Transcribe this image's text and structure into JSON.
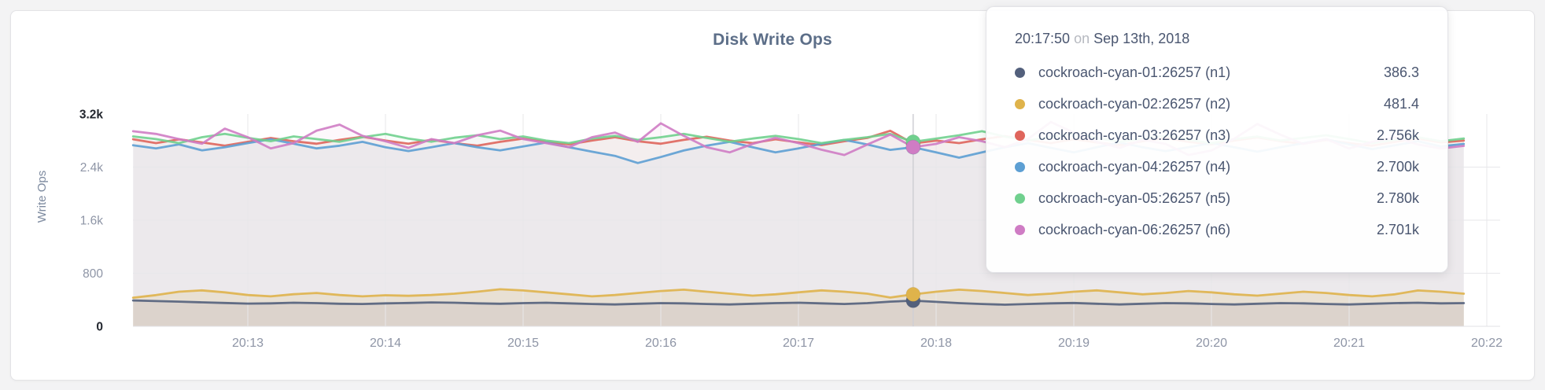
{
  "chart": {
    "title": "Disk Write Ops",
    "y_axis_label": "Write Ops"
  },
  "tooltip": {
    "time": "20:17:50",
    "conjunction": "on",
    "date": "Sep 13th, 2018",
    "rows": [
      {
        "label": "cockroach-cyan-01:26257 (n1)",
        "value": "386.3",
        "color": "#53607c"
      },
      {
        "label": "cockroach-cyan-02:26257 (n2)",
        "value": "481.4",
        "color": "#dfb34b"
      },
      {
        "label": "cockroach-cyan-03:26257 (n3)",
        "value": "2.756k",
        "color": "#df655c"
      },
      {
        "label": "cockroach-cyan-04:26257 (n4)",
        "value": "2.700k",
        "color": "#5d9fd3"
      },
      {
        "label": "cockroach-cyan-05:26257 (n5)",
        "value": "2.780k",
        "color": "#70d08e"
      },
      {
        "label": "cockroach-cyan-06:26257 (n6)",
        "value": "2.701k",
        "color": "#cf7cc4"
      }
    ]
  },
  "chart_data": {
    "type": "line",
    "title": "Disk Write Ops",
    "ylabel": "Write Ops",
    "xlabel": "",
    "ylim": [
      0,
      3200
    ],
    "y_tick_values": [
      0,
      800,
      1600,
      2400,
      3200
    ],
    "y_tick_labels": [
      "0",
      "800",
      "1.6k",
      "2.4k",
      "3.2k"
    ],
    "x_ticks": [
      "20:13",
      "20:14",
      "20:15",
      "20:16",
      "20:17",
      "20:18",
      "20:19",
      "20:20",
      "20:21",
      "20:22"
    ],
    "x_start": "20:12:10",
    "x_end": "20:21:50",
    "x_interval_seconds": 10,
    "grid": true,
    "legend_position": "tooltip-only",
    "hover": {
      "time": "20:17:50",
      "date": "Sep 13th, 2018",
      "index": 34
    },
    "series": [
      {
        "name": "cockroach-cyan-01:26257 (n1)",
        "color": "#53607c",
        "fill_opacity": 0.1,
        "hover_value": 386.3,
        "values": [
          390,
          380,
          372,
          362,
          352,
          342,
          346,
          356,
          350,
          340,
          336,
          346,
          352,
          360,
          355,
          346,
          340,
          350,
          356,
          346,
          336,
          330,
          340,
          350,
          346,
          336,
          330,
          340,
          350,
          356,
          346,
          336,
          350,
          372,
          386.3,
          368,
          350,
          336,
          326,
          336,
          346,
          352,
          340,
          330,
          340,
          350,
          346,
          336,
          330,
          340,
          350,
          346,
          336,
          330,
          340,
          350,
          356,
          346,
          350
        ]
      },
      {
        "name": "cockroach-cyan-02:26257 (n2)",
        "color": "#dfb34b",
        "fill_opacity": 0.16,
        "hover_value": 481.4,
        "values": [
          432,
          470,
          521,
          542,
          512,
          472,
          452,
          483,
          502,
          472,
          452,
          468,
          460,
          472,
          492,
          522,
          558,
          540,
          512,
          482,
          452,
          472,
          502,
          532,
          552,
          522,
          492,
          462,
          482,
          512,
          542,
          522,
          492,
          434,
          481.4,
          522,
          552,
          532,
          502,
          472,
          492,
          522,
          542,
          512,
          482,
          502,
          532,
          512,
          482,
          462,
          492,
          522,
          502,
          472,
          452,
          482,
          541,
          521,
          492
        ]
      },
      {
        "name": "cockroach-cyan-03:26257 (n3)",
        "color": "#df655c",
        "fill_opacity": 0.05,
        "hover_value": 2756,
        "values": [
          2820,
          2762,
          2818,
          2772,
          2722,
          2780,
          2838,
          2790,
          2752,
          2810,
          2858,
          2800,
          2752,
          2812,
          2762,
          2722,
          2780,
          2830,
          2782,
          2742,
          2800,
          2850,
          2790,
          2752,
          2810,
          2858,
          2800,
          2762,
          2820,
          2772,
          2732,
          2790,
          2840,
          2948,
          2756,
          2800,
          2762,
          2820,
          2868,
          2810,
          2762,
          2820,
          2772,
          2732,
          2790,
          2838,
          2780,
          2742,
          2800,
          2848,
          2790,
          2752,
          2810,
          2762,
          2722,
          2780,
          2830,
          2772,
          2800
        ]
      },
      {
        "name": "cockroach-cyan-04:26257 (n4)",
        "color": "#5d9fd3",
        "fill_opacity": 0.05,
        "hover_value": 2700,
        "values": [
          2730,
          2682,
          2742,
          2652,
          2700,
          2762,
          2820,
          2752,
          2682,
          2722,
          2780,
          2700,
          2642,
          2700,
          2762,
          2700,
          2652,
          2712,
          2770,
          2700,
          2632,
          2570,
          2462,
          2552,
          2650,
          2722,
          2780,
          2700,
          2622,
          2682,
          2750,
          2810,
          2740,
          2660,
          2700,
          2622,
          2542,
          2622,
          2700,
          2762,
          2690,
          2622,
          2700,
          2770,
          2700,
          2642,
          2700,
          2762,
          2700,
          2632,
          2700,
          2760,
          2820,
          2742,
          2672,
          2730,
          2790,
          2712,
          2750
        ]
      },
      {
        "name": "cockroach-cyan-05:26257 (n5)",
        "color": "#70d08e",
        "fill_opacity": 0.05,
        "hover_value": 2780,
        "values": [
          2862,
          2822,
          2762,
          2850,
          2900,
          2842,
          2790,
          2862,
          2822,
          2782,
          2850,
          2900,
          2830,
          2782,
          2842,
          2880,
          2822,
          2862,
          2800,
          2762,
          2830,
          2870,
          2810,
          2850,
          2900,
          2840,
          2782,
          2830,
          2870,
          2822,
          2762,
          2810,
          2850,
          2900,
          2780,
          2830,
          2880,
          2940,
          2860,
          2800,
          2850,
          2900,
          2840,
          2782,
          2830,
          2870,
          2810,
          2762,
          2822,
          2860,
          2800,
          2840,
          2880,
          2822,
          2762,
          2810,
          2850,
          2790,
          2830
        ]
      },
      {
        "name": "cockroach-cyan-06:26257 (n6)",
        "color": "#cf7cc4",
        "fill_opacity": 0.05,
        "hover_value": 2701,
        "values": [
          2940,
          2900,
          2822,
          2752,
          2980,
          2850,
          2682,
          2762,
          2950,
          3040,
          2870,
          2790,
          2690,
          2822,
          2762,
          2880,
          2950,
          2822,
          2762,
          2700,
          2850,
          2920,
          2780,
          3060,
          2870,
          2700,
          2622,
          2750,
          2840,
          2762,
          2662,
          2582,
          2740,
          2890,
          2701,
          2750,
          2850,
          2790,
          2700,
          2822,
          3080,
          2920,
          2780,
          2690,
          2810,
          2750,
          2582,
          2650,
          2830,
          3050,
          2890,
          2750,
          2822,
          2680,
          2780,
          2850,
          2740,
          2680,
          2720
        ]
      }
    ]
  }
}
